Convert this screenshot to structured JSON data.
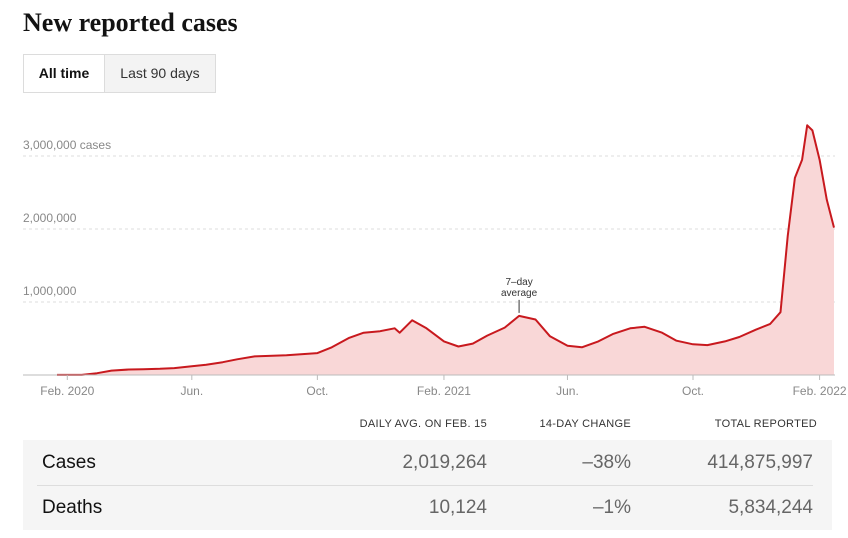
{
  "title": "New reported cases",
  "tabs": [
    "All time",
    "Last 90 days"
  ],
  "chart_data": {
    "type": "area",
    "x": [
      "2020-01-22",
      "2020-02-15",
      "2020-03-01",
      "2020-03-15",
      "2020-04-01",
      "2020-04-15",
      "2020-05-01",
      "2020-05-15",
      "2020-06-01",
      "2020-06-15",
      "2020-07-01",
      "2020-07-15",
      "2020-08-01",
      "2020-08-15",
      "2020-09-01",
      "2020-09-15",
      "2020-10-01",
      "2020-10-15",
      "2020-11-01",
      "2020-11-15",
      "2020-12-01",
      "2020-12-15",
      "2020-12-20",
      "2021-01-01",
      "2021-01-15",
      "2021-02-01",
      "2021-02-15",
      "2021-03-01",
      "2021-03-15",
      "2021-04-01",
      "2021-04-15",
      "2021-05-01",
      "2021-05-15",
      "2021-06-01",
      "2021-06-15",
      "2021-07-01",
      "2021-07-15",
      "2021-08-01",
      "2021-08-15",
      "2021-09-01",
      "2021-09-15",
      "2021-10-01",
      "2021-10-15",
      "2021-11-01",
      "2021-11-15",
      "2021-12-01",
      "2021-12-15",
      "2021-12-25",
      "2022-01-01",
      "2022-01-08",
      "2022-01-15",
      "2022-01-20",
      "2022-01-25",
      "2022-02-01",
      "2022-02-08",
      "2022-02-15"
    ],
    "values": [
      1000,
      2000,
      25000,
      60000,
      75000,
      80000,
      85000,
      95000,
      120000,
      140000,
      175000,
      215000,
      255000,
      262000,
      270000,
      285000,
      300000,
      380000,
      510000,
      580000,
      600000,
      640000,
      580000,
      750000,
      640000,
      460000,
      390000,
      430000,
      540000,
      650000,
      810000,
      760000,
      530000,
      400000,
      380000,
      460000,
      560000,
      640000,
      660000,
      580000,
      470000,
      420000,
      410000,
      460000,
      520000,
      620000,
      700000,
      860000,
      1900000,
      2700000,
      2950000,
      3420000,
      3350000,
      2950000,
      2400000,
      2019264
    ],
    "color": "#c8191e",
    "fill": "#f9d7d7",
    "xlim": [
      "2020-01-22",
      "2022-02-15"
    ],
    "xticks": [
      {
        "value": "2020-02-01",
        "label": "Feb. 2020"
      },
      {
        "value": "2020-06-01",
        "label": "Jun."
      },
      {
        "value": "2020-10-01",
        "label": "Oct."
      },
      {
        "value": "2021-02-01",
        "label": "Feb. 2021"
      },
      {
        "value": "2021-06-01",
        "label": "Jun."
      },
      {
        "value": "2021-10-01",
        "label": "Oct."
      },
      {
        "value": "2022-02-01",
        "label": "Feb. 2022"
      }
    ],
    "ylim": [
      0,
      3500000
    ],
    "yticks": [
      {
        "value": 1000000,
        "label": "1,000,000"
      },
      {
        "value": 2000000,
        "label": "2,000,000"
      },
      {
        "value": 3000000,
        "label": "3,000,000 cases"
      }
    ],
    "grid": true,
    "annotation": {
      "lines": [
        "7–day",
        "average"
      ],
      "x": "2021-04-15"
    }
  },
  "table": {
    "header": [
      "DAILY AVG. ON FEB. 15",
      "14-DAY CHANGE",
      "TOTAL REPORTED"
    ],
    "rows": [
      [
        "Cases",
        "2,019,264",
        "–38%",
        "414,875,997"
      ],
      [
        "Deaths",
        "10,124",
        "–1%",
        "5,834,244"
      ]
    ]
  }
}
